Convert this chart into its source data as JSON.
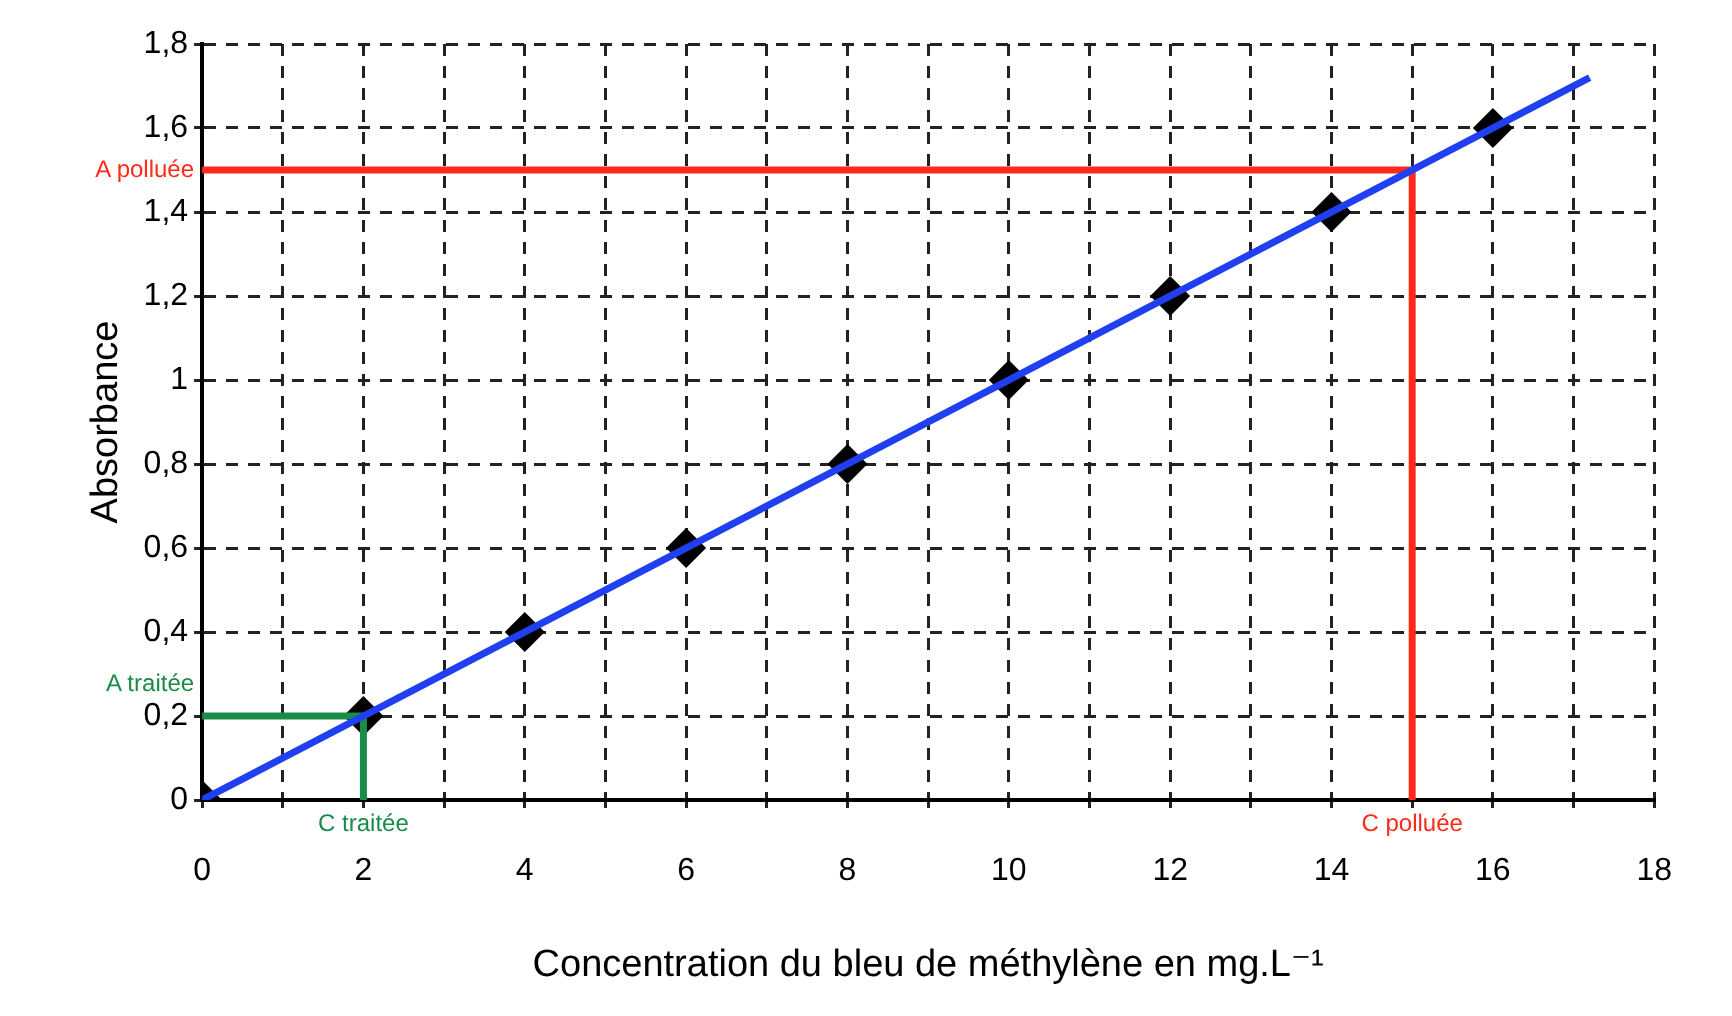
{
  "chart_data": {
    "type": "scatter",
    "xlabel": "Concentration du bleu de méthylène en mg.L⁻¹",
    "ylabel": "Absorbance",
    "xlim": [
      0,
      18
    ],
    "xticks": [
      0,
      {
        "value": 1,
        "label": null
      },
      2,
      {
        "value": 3,
        "label": null
      },
      4,
      {
        "value": 5,
        "label": null
      },
      6,
      {
        "value": 7,
        "label": null
      },
      8,
      {
        "value": 9,
        "label": null
      },
      10,
      {
        "value": 11,
        "label": null
      },
      12,
      {
        "value": 13,
        "label": null
      },
      14,
      {
        "value": 15,
        "label": null
      },
      16,
      {
        "value": 17,
        "label": null
      },
      18
    ],
    "ylim": [
      0,
      1.8
    ],
    "yticks": [
      0,
      {
        "value": 0.2,
        "label": "0,2"
      },
      {
        "value": 0.4,
        "label": "0,4"
      },
      {
        "value": 0.6,
        "label": "0,6"
      },
      {
        "value": 0.8,
        "label": "0,8"
      },
      1,
      {
        "value": 1.2,
        "label": "1,2"
      },
      {
        "value": 1.4,
        "label": "1,4"
      },
      {
        "value": 1.6,
        "label": "1,6"
      },
      {
        "value": 1.8,
        "label": "1,8"
      }
    ],
    "grid": true,
    "marker": "diamond",
    "series": [
      {
        "color": "#000000",
        "x": [
          0,
          2,
          4,
          6,
          8,
          10,
          12,
          14,
          16
        ],
        "values": [
          0,
          0.2,
          0.4,
          0.6,
          0.8,
          1,
          1.2,
          1.4,
          1.6
        ]
      },
      {
        "type": "line",
        "color": "#1f3ff0",
        "marker": "none",
        "x": [
          0,
          17.2
        ],
        "values": [
          0,
          1.72
        ]
      },
      {
        "type": "line",
        "color": "#ff2a1a",
        "marker": "none",
        "x": [
          0,
          15,
          15
        ],
        "values": [
          1.5,
          1.5,
          0
        ]
      },
      {
        "type": "line",
        "color": "#1a8c4a",
        "marker": "none",
        "x": [
          0,
          2,
          2
        ],
        "values": [
          0.2,
          0.2,
          0
        ]
      }
    ],
    "annotations": [
      {
        "text": "A polluée",
        "x": 0,
        "y": 1.5
      },
      {
        "text": "C polluée",
        "x": 15,
        "y": 0
      },
      {
        "text": "A traitée",
        "x": 0,
        "y": 0.2
      },
      {
        "text": "C traitée",
        "x": 2,
        "y": 0
      }
    ]
  }
}
